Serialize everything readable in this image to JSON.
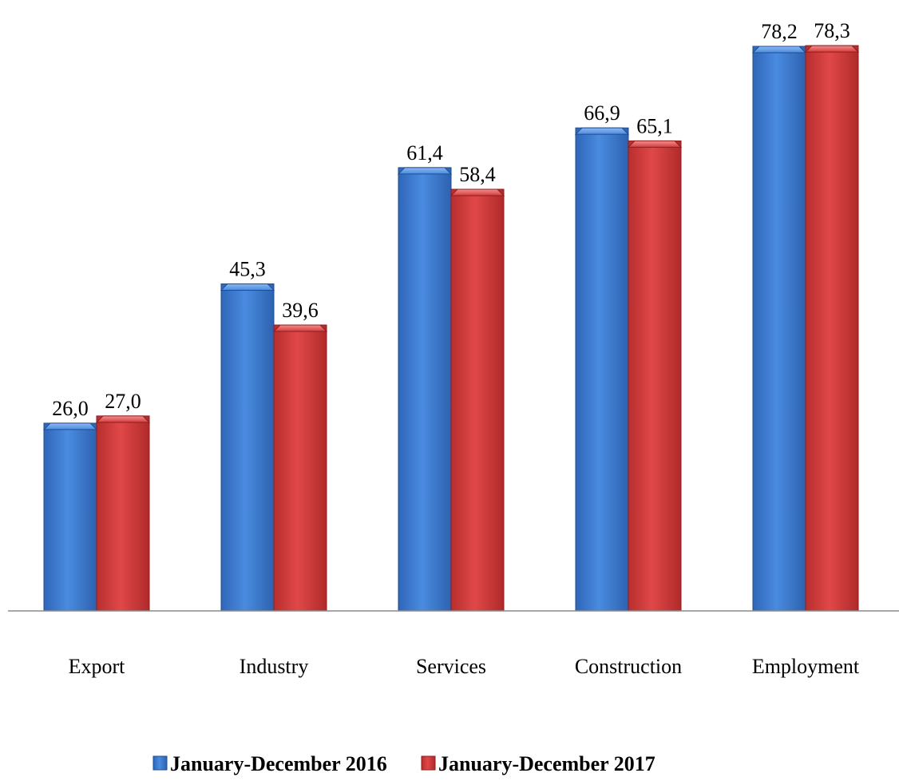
{
  "chart_data": {
    "type": "bar",
    "categories": [
      "Export",
      "Industry",
      "Services",
      "Construction",
      "Employment"
    ],
    "series": [
      {
        "name": "January-December 2016",
        "values": [
          26.0,
          45.3,
          61.4,
          66.9,
          78.2
        ],
        "labels": [
          "26,0",
          "45,3",
          "61,4",
          "66,9",
          "78,2"
        ],
        "color": "#3F7FD6"
      },
      {
        "name": "January-December 2017",
        "values": [
          27.0,
          39.6,
          58.4,
          65.1,
          78.3
        ],
        "labels": [
          "27,0",
          "39,6",
          "58,4",
          "65,1",
          "78,3"
        ],
        "color": "#D63A3A"
      }
    ],
    "title": "",
    "xlabel": "",
    "ylabel": "",
    "ylim": [
      0,
      80
    ],
    "grid": false,
    "legend_position": "bottom"
  }
}
